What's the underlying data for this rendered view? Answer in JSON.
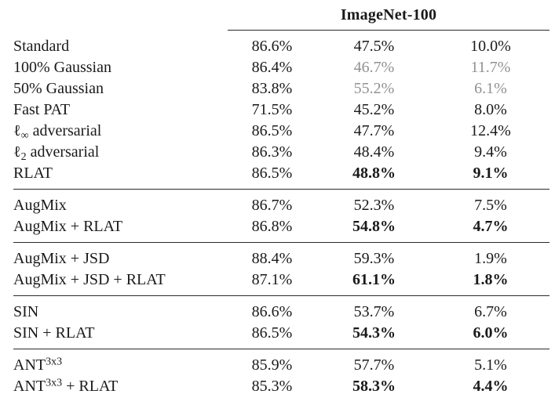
{
  "header": {
    "group_title": "ImageNet-100"
  },
  "colors": {
    "text": "#1a1a1a",
    "muted_value": "#919191",
    "rule": "#2a2a2a",
    "background": "#ffffff"
  },
  "table": {
    "sections": [
      {
        "rows": [
          {
            "label_parts": [
              {
                "t": "Standard"
              }
            ],
            "values": [
              {
                "v": "86.6%",
                "style": "normal"
              },
              {
                "v": "47.5%",
                "style": "normal"
              },
              {
                "v": "10.0%",
                "style": "normal"
              }
            ]
          },
          {
            "label_parts": [
              {
                "t": "100% Gaussian"
              }
            ],
            "values": [
              {
                "v": "86.4%",
                "style": "normal"
              },
              {
                "v": "46.7%",
                "style": "gray"
              },
              {
                "v": "11.7%",
                "style": "gray"
              }
            ]
          },
          {
            "label_parts": [
              {
                "t": "50% Gaussian"
              }
            ],
            "values": [
              {
                "v": "83.8%",
                "style": "normal"
              },
              {
                "v": "55.2%",
                "style": "gray"
              },
              {
                "v": "6.1%",
                "style": "gray"
              }
            ]
          },
          {
            "label_parts": [
              {
                "t": "Fast PAT"
              }
            ],
            "values": [
              {
                "v": "71.5%",
                "style": "normal"
              },
              {
                "v": "45.2%",
                "style": "normal"
              },
              {
                "v": "8.0%",
                "style": "normal"
              }
            ]
          },
          {
            "label_parts": [
              {
                "t": "ℓ"
              },
              {
                "t": "∞",
                "sub": true
              },
              {
                "t": " adversarial"
              }
            ],
            "values": [
              {
                "v": "86.5%",
                "style": "normal"
              },
              {
                "v": "47.7%",
                "style": "normal"
              },
              {
                "v": "12.4%",
                "style": "normal"
              }
            ]
          },
          {
            "label_parts": [
              {
                "t": "ℓ"
              },
              {
                "t": "2",
                "sub": true
              },
              {
                "t": " adversarial"
              }
            ],
            "values": [
              {
                "v": "86.3%",
                "style": "normal"
              },
              {
                "v": "48.4%",
                "style": "normal"
              },
              {
                "v": "9.4%",
                "style": "normal"
              }
            ]
          },
          {
            "label_parts": [
              {
                "t": "RLAT"
              }
            ],
            "values": [
              {
                "v": "86.5%",
                "style": "normal"
              },
              {
                "v": "48.8%",
                "style": "bold"
              },
              {
                "v": "9.1%",
                "style": "bold"
              }
            ]
          }
        ]
      },
      {
        "rows": [
          {
            "label_parts": [
              {
                "t": "AugMix"
              }
            ],
            "values": [
              {
                "v": "86.7%",
                "style": "normal"
              },
              {
                "v": "52.3%",
                "style": "normal"
              },
              {
                "v": "7.5%",
                "style": "normal"
              }
            ]
          },
          {
            "label_parts": [
              {
                "t": "AugMix + RLAT"
              }
            ],
            "values": [
              {
                "v": "86.8%",
                "style": "normal"
              },
              {
                "v": "54.8%",
                "style": "bold"
              },
              {
                "v": "4.7%",
                "style": "bold"
              }
            ]
          }
        ]
      },
      {
        "rows": [
          {
            "label_parts": [
              {
                "t": "AugMix + JSD"
              }
            ],
            "values": [
              {
                "v": "88.4%",
                "style": "normal"
              },
              {
                "v": "59.3%",
                "style": "normal"
              },
              {
                "v": "1.9%",
                "style": "normal"
              }
            ]
          },
          {
            "label_parts": [
              {
                "t": "AugMix + JSD + RLAT"
              }
            ],
            "values": [
              {
                "v": "87.1%",
                "style": "normal"
              },
              {
                "v": "61.1%",
                "style": "bold"
              },
              {
                "v": "1.8%",
                "style": "bold"
              }
            ]
          }
        ]
      },
      {
        "rows": [
          {
            "label_parts": [
              {
                "t": "SIN"
              }
            ],
            "values": [
              {
                "v": "86.6%",
                "style": "normal"
              },
              {
                "v": "53.7%",
                "style": "normal"
              },
              {
                "v": "6.7%",
                "style": "normal"
              }
            ]
          },
          {
            "label_parts": [
              {
                "t": "SIN + RLAT"
              }
            ],
            "values": [
              {
                "v": "86.5%",
                "style": "normal"
              },
              {
                "v": "54.3%",
                "style": "bold"
              },
              {
                "v": "6.0%",
                "style": "bold"
              }
            ]
          }
        ]
      },
      {
        "rows": [
          {
            "label_parts": [
              {
                "t": "ANT"
              },
              {
                "t": "3x3",
                "sup": true
              }
            ],
            "values": [
              {
                "v": "85.9%",
                "style": "normal"
              },
              {
                "v": "57.7%",
                "style": "normal"
              },
              {
                "v": "5.1%",
                "style": "normal"
              }
            ]
          },
          {
            "label_parts": [
              {
                "t": "ANT"
              },
              {
                "t": "3x3",
                "sup": true
              },
              {
                "t": " + RLAT"
              }
            ],
            "values": [
              {
                "v": "85.3%",
                "style": "normal"
              },
              {
                "v": "58.3%",
                "style": "bold"
              },
              {
                "v": "4.4%",
                "style": "bold"
              }
            ]
          }
        ]
      }
    ]
  }
}
